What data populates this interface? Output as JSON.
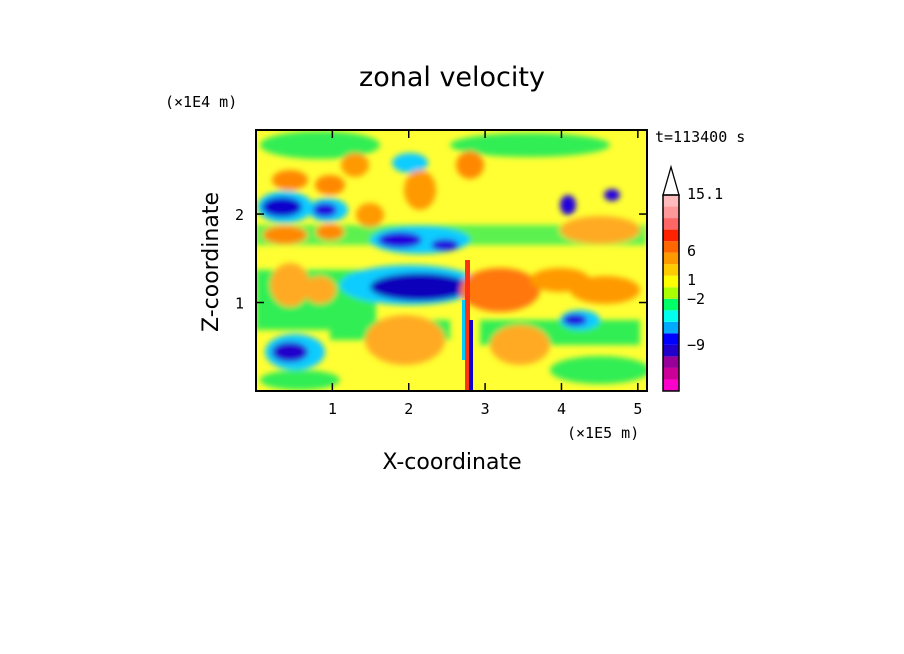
{
  "chart_data": {
    "type": "heatmap",
    "title": "zonal velocity",
    "xlabel": "X-coordinate",
    "ylabel": "Z-coordinate",
    "x_scale_note": "(×1E5 m)",
    "y_scale_note": "(×1E4 m)",
    "time_label": "t=113400 s",
    "xlim": [
      0,
      5.12
    ],
    "ylim": [
      0,
      2.95
    ],
    "x_ticks": [
      1,
      2,
      3,
      4,
      5
    ],
    "x_tick_labels": [
      "1",
      "2",
      "3",
      "4",
      "5"
    ],
    "y_ticks": [
      1,
      2
    ],
    "y_tick_labels": [
      "1",
      "2"
    ],
    "colorbar": {
      "colors": [
        "#ff00cc",
        "#cc0099",
        "#990099",
        "#2200cc",
        "#0000ff",
        "#00aaff",
        "#00ffee",
        "#00ff66",
        "#aaff00",
        "#ffff00",
        "#ffcc00",
        "#ff9900",
        "#ff6600",
        "#ff2200",
        "#ff6666",
        "#ff9999",
        "#ffbbbb"
      ],
      "tick_labels": [
        "15.1",
        "6",
        "1",
        "−2",
        "−9"
      ],
      "tick_values": [
        15.1,
        6,
        1,
        -2,
        -9
      ]
    }
  }
}
